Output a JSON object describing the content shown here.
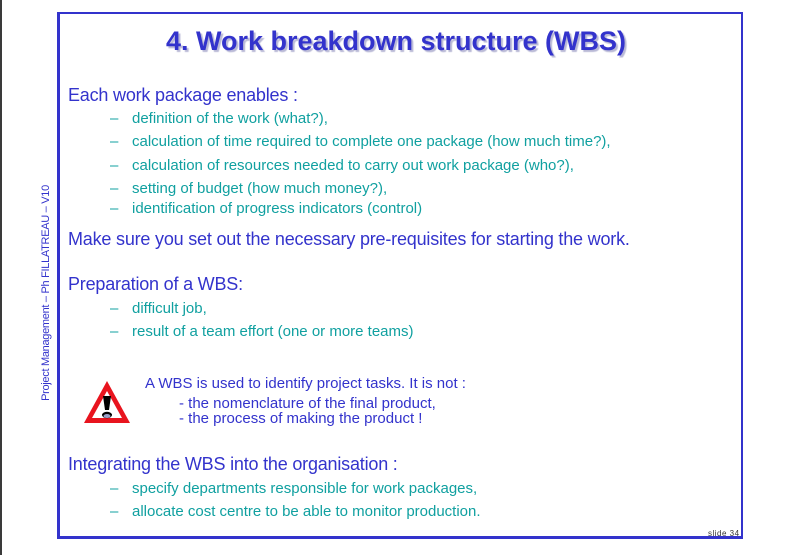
{
  "side_label": "Project Management – Ph FILLATREAU – V10",
  "title": "4. Work breakdown structure (WBS)",
  "section1": {
    "heading": "Each work package enables :",
    "items": [
      "definition of  the work (what?),",
      "calculation of time required to complete one package (how much time?),",
      "calculation of resources needed to carry out work package (who?),",
      "setting of budget (how much money?),",
      "identification of progress indicators (control)"
    ]
  },
  "section2": {
    "heading": "Make sure you set out the necessary pre-requisites for starting the work."
  },
  "section3": {
    "heading": "Preparation of a WBS:",
    "items": [
      "difficult job,",
      "result of a team effort (one or more teams)"
    ]
  },
  "warning": {
    "icon": "warning-triangle-icon",
    "line1": "A WBS is used to identify project tasks.  It is not :",
    "line2": "-  the nomenclature of the final product,",
    "line3": "-  the process of making the product !"
  },
  "section4": {
    "heading": "Integrating the WBS into the organisation :",
    "items": [
      "specify departments responsible for work packages,",
      "allocate  cost centre to be able to monitor production."
    ]
  },
  "dash": "–",
  "slide_number": "slide 34",
  "colors": {
    "accent": "#3333cc",
    "bullet_text": "#10a0a0",
    "warning_red": "#e8141e"
  }
}
